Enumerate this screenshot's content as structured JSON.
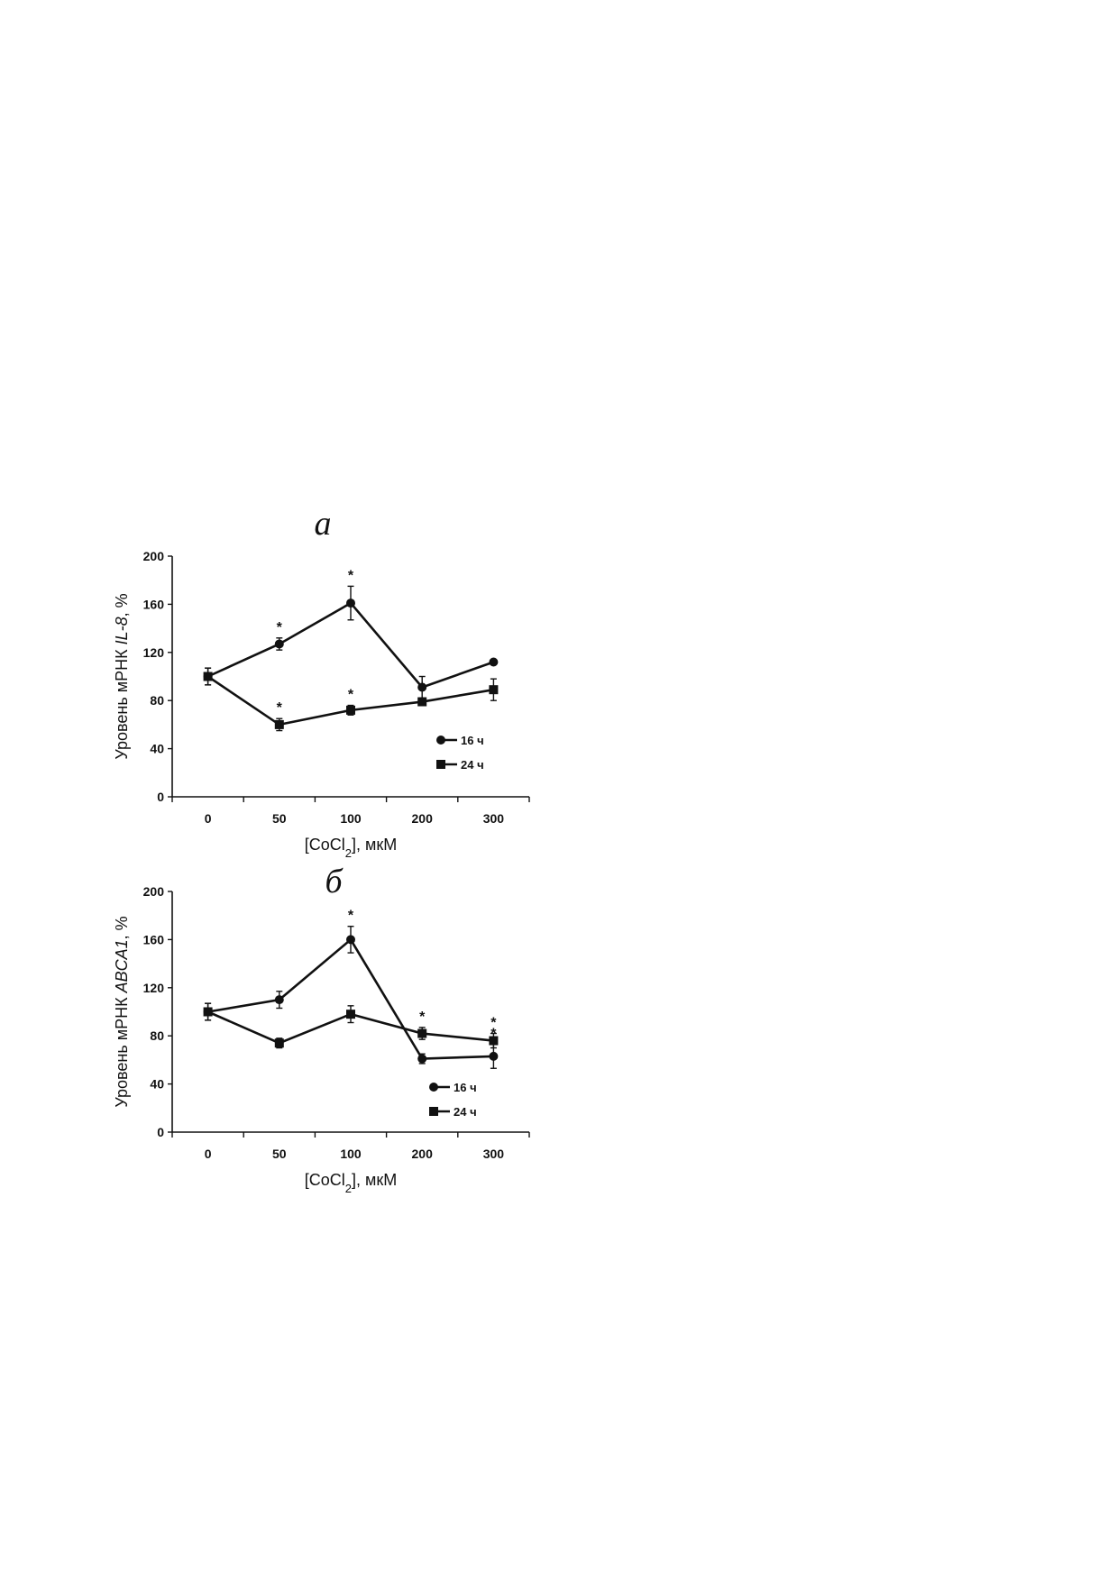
{
  "chart_data": [
    {
      "type": "line",
      "panel_label": "а",
      "ylabel_prefix": "Уровень мРНК ",
      "ylabel_gene": "IL-8",
      "ylabel_suffix": ", %",
      "xlabel_prefix": "[CoCl",
      "xlabel_sub": "2",
      "xlabel_suffix": "], мкМ",
      "categories": [
        "0",
        "50",
        "100",
        "200",
        "300"
      ],
      "ylim": [
        0,
        200
      ],
      "yticks": [
        "0",
        "40",
        "80",
        "120",
        "160",
        "200"
      ],
      "legend_position": "lower-right",
      "series": [
        {
          "name": "16 ч",
          "marker": "circle",
          "values": [
            100,
            127,
            161,
            91,
            112
          ],
          "errors": [
            7,
            5,
            14,
            9,
            2
          ],
          "significant": [
            false,
            true,
            true,
            false,
            false
          ]
        },
        {
          "name": "24 ч",
          "marker": "square",
          "values": [
            100,
            60,
            72,
            79,
            89
          ],
          "errors": [
            7,
            5,
            4,
            3,
            9
          ],
          "significant": [
            false,
            true,
            true,
            true,
            false
          ]
        }
      ]
    },
    {
      "type": "line",
      "panel_label": "б",
      "ylabel_prefix": "Уровень мРНК ",
      "ylabel_gene": "ABCA1",
      "ylabel_suffix": ", %",
      "xlabel_prefix": "[CoCl",
      "xlabel_sub": "2",
      "xlabel_suffix": "], мкМ",
      "categories": [
        "0",
        "50",
        "100",
        "200",
        "300"
      ],
      "ylim": [
        0,
        200
      ],
      "yticks": [
        "0",
        "40",
        "80",
        "120",
        "160",
        "200"
      ],
      "legend_position": "lower-right",
      "series": [
        {
          "name": "16 ч",
          "marker": "circle",
          "values": [
            100,
            110,
            160,
            61,
            63
          ],
          "errors": [
            7,
            7,
            11,
            4,
            10
          ],
          "significant": [
            false,
            false,
            true,
            false,
            true
          ]
        },
        {
          "name": "24 ч",
          "marker": "square",
          "values": [
            100,
            74,
            98,
            82,
            76
          ],
          "errors": [
            7,
            4,
            7,
            5,
            6
          ],
          "significant": [
            false,
            false,
            false,
            true,
            true
          ]
        }
      ]
    }
  ]
}
